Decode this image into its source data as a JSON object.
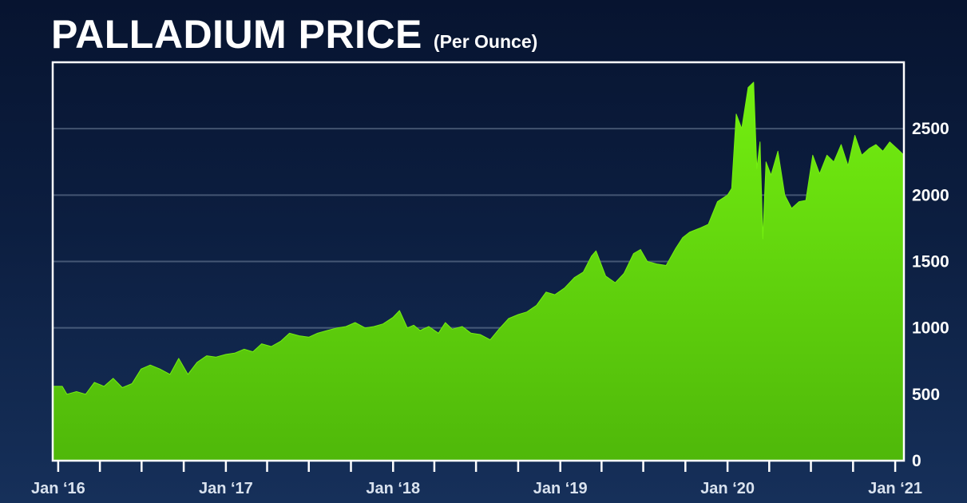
{
  "header": {
    "title": "PALLADIUM PRICE",
    "subtitle": "(Per Ounce)"
  },
  "colors": {
    "fill_top": "#74ef10",
    "fill_bottom": "#4fb80a",
    "frame": "#ffffff",
    "grid": "#8a9bb4"
  },
  "chart_data": {
    "type": "area",
    "title": "PALLADIUM PRICE",
    "subtitle": "(Per Ounce)",
    "xlabel": "",
    "ylabel": "",
    "x_tick_labels": [
      "Jan ‘16",
      "Jan ‘17",
      "Jan ‘18",
      "Jan ‘19",
      "Jan ‘20",
      "Jan ‘21"
    ],
    "y_ticks": [
      0,
      500,
      1000,
      1500,
      2000,
      2500
    ],
    "ylim": [
      0,
      3000
    ],
    "xlim": [
      "2015-12-20",
      "2021-01-20"
    ],
    "grid": true,
    "legend": "none",
    "series": [
      {
        "x": [
          "2015-12-20",
          "2016-01-10",
          "2016-01-20",
          "2016-02-10",
          "2016-03-01",
          "2016-03-20",
          "2016-04-10",
          "2016-04-30",
          "2016-05-20",
          "2016-06-10",
          "2016-06-30",
          "2016-07-20",
          "2016-08-10",
          "2016-09-01",
          "2016-09-20",
          "2016-10-10",
          "2016-10-30",
          "2016-11-20",
          "2016-12-10",
          "2017-01-01",
          "2017-01-20",
          "2017-02-10",
          "2017-03-01",
          "2017-03-20",
          "2017-04-10",
          "2017-05-01",
          "2017-05-20",
          "2017-06-10",
          "2017-07-01",
          "2017-07-20",
          "2017-08-10",
          "2017-09-01",
          "2017-09-20",
          "2017-10-10",
          "2017-11-01",
          "2017-11-20",
          "2017-12-10",
          "2018-01-01",
          "2018-01-15",
          "2018-02-01",
          "2018-02-15",
          "2018-03-01",
          "2018-03-20",
          "2018-04-10",
          "2018-04-25",
          "2018-05-10",
          "2018-06-01",
          "2018-06-20",
          "2018-07-10",
          "2018-08-01",
          "2018-08-20",
          "2018-09-10",
          "2018-10-01",
          "2018-10-20",
          "2018-11-10",
          "2018-12-01",
          "2018-12-20",
          "2019-01-10",
          "2019-02-01",
          "2019-02-20",
          "2019-03-10",
          "2019-03-20",
          "2019-04-10",
          "2019-05-01",
          "2019-05-20",
          "2019-06-10",
          "2019-06-25",
          "2019-07-10",
          "2019-08-01",
          "2019-08-20",
          "2019-09-10",
          "2019-09-25",
          "2019-10-10",
          "2019-11-01",
          "2019-11-20",
          "2019-12-10",
          "2020-01-01",
          "2020-01-10",
          "2020-01-20",
          "2020-02-01",
          "2020-02-15",
          "2020-02-27",
          "2020-03-05",
          "2020-03-12",
          "2020-03-18",
          "2020-03-25",
          "2020-04-05",
          "2020-04-20",
          "2020-05-05",
          "2020-05-20",
          "2020-06-05",
          "2020-06-20",
          "2020-07-05",
          "2020-07-20",
          "2020-08-05",
          "2020-08-20",
          "2020-09-05",
          "2020-09-20",
          "2020-10-05",
          "2020-10-20",
          "2020-11-05",
          "2020-11-20",
          "2020-12-05",
          "2020-12-20",
          "2021-01-05",
          "2021-01-20"
        ],
        "values": [
          560,
          560,
          500,
          520,
          500,
          590,
          560,
          620,
          550,
          580,
          690,
          720,
          690,
          650,
          770,
          650,
          740,
          790,
          780,
          800,
          810,
          840,
          820,
          880,
          860,
          900,
          960,
          940,
          930,
          960,
          980,
          1000,
          1010,
          1040,
          1000,
          1010,
          1030,
          1080,
          1130,
          1000,
          1020,
          980,
          1010,
          960,
          1040,
          990,
          1010,
          960,
          950,
          910,
          990,
          1070,
          1100,
          1120,
          1170,
          1270,
          1250,
          1300,
          1380,
          1420,
          1540,
          1580,
          1390,
          1340,
          1410,
          1560,
          1590,
          1500,
          1480,
          1470,
          1600,
          1680,
          1720,
          1750,
          1780,
          1950,
          2000,
          2050,
          2610,
          2500,
          2810,
          2850,
          2200,
          2400,
          1670,
          2250,
          2150,
          2330,
          2000,
          1900,
          1950,
          1960,
          2300,
          2160,
          2300,
          2250,
          2380,
          2220,
          2450,
          2300,
          2350,
          2380,
          2330,
          2400,
          2350,
          2300
        ]
      }
    ]
  }
}
